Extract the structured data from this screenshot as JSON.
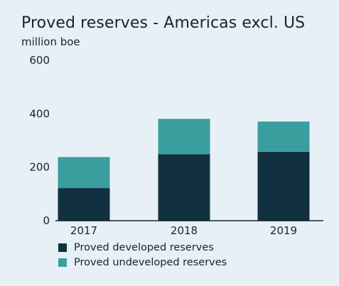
{
  "header": {
    "title": "Proved reserves - Americas excl. US",
    "unit": "million boe"
  },
  "colors": {
    "developed": "#123140",
    "undeveloped": "#3a9e9f",
    "background": "#e6f0f6",
    "axis": "#14242f"
  },
  "chart_data": {
    "type": "bar",
    "stacked": true,
    "title": "Proved reserves - Americas excl. US",
    "ylabel": "million boe",
    "categories": [
      "2017",
      "2018",
      "2019"
    ],
    "series": [
      {
        "name": "Proved developed reserves",
        "values": [
          122,
          249,
          258
        ]
      },
      {
        "name": "Proved undeveloped reserves",
        "values": [
          116,
          132,
          113
        ]
      }
    ],
    "ylim": [
      0,
      600
    ],
    "yticks": [
      0,
      200,
      400,
      600
    ],
    "grid": false,
    "legend": "bottom-left"
  }
}
